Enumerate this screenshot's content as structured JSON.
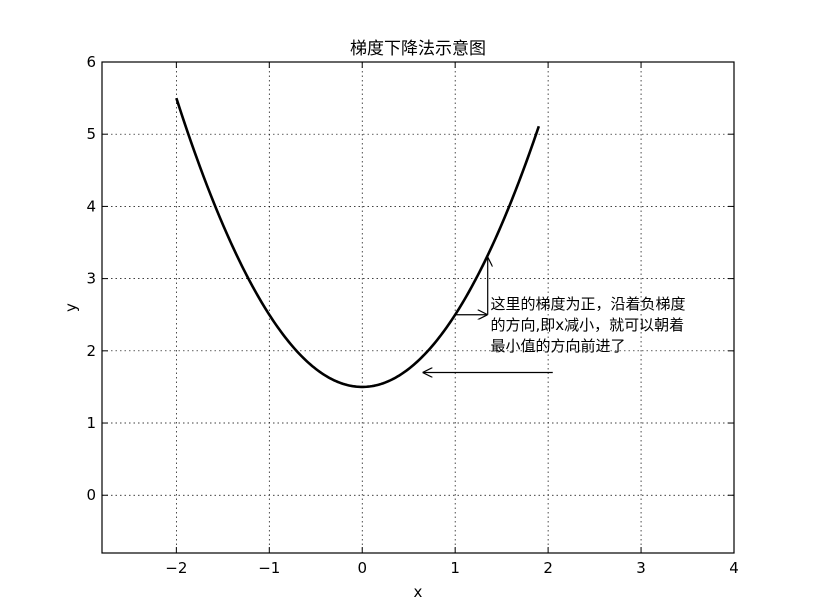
{
  "chart_data": {
    "type": "line",
    "title": "梯度下降法示意图",
    "xlabel": "x",
    "ylabel": "y",
    "xlim": [
      -2.8,
      4
    ],
    "ylim": [
      -0.8,
      6
    ],
    "xticks": [
      -2,
      -1,
      0,
      1,
      2,
      3,
      4
    ],
    "xtick_labels": [
      "−2",
      "−1",
      "0",
      "1",
      "2",
      "3",
      "4"
    ],
    "yticks": [
      0,
      1,
      2,
      3,
      4,
      5,
      6
    ],
    "ytick_labels": [
      "0",
      "1",
      "2",
      "3",
      "4",
      "5",
      "6"
    ],
    "grid": true,
    "series": [
      {
        "function": "y = x^2 + 1.5",
        "x_range": [
          -2,
          1.9
        ],
        "color": "#000000"
      }
    ],
    "annotations": [
      {
        "kind": "gradient-arrows",
        "from": [
          1.0,
          2.5
        ],
        "horizontal_to": [
          1.35,
          2.5
        ],
        "vertical_to": [
          1.35,
          3.3
        ]
      },
      {
        "kind": "move-arrow",
        "from": [
          2.05,
          1.7
        ],
        "to": [
          0.65,
          1.7
        ]
      },
      {
        "kind": "text",
        "anchor": [
          1.38,
          2.0
        ],
        "lines": [
          "这里的梯度为正，沿着负梯度",
          "的方向,即x减小，就可以朝着",
          "最小值的方向前进了"
        ]
      }
    ]
  }
}
